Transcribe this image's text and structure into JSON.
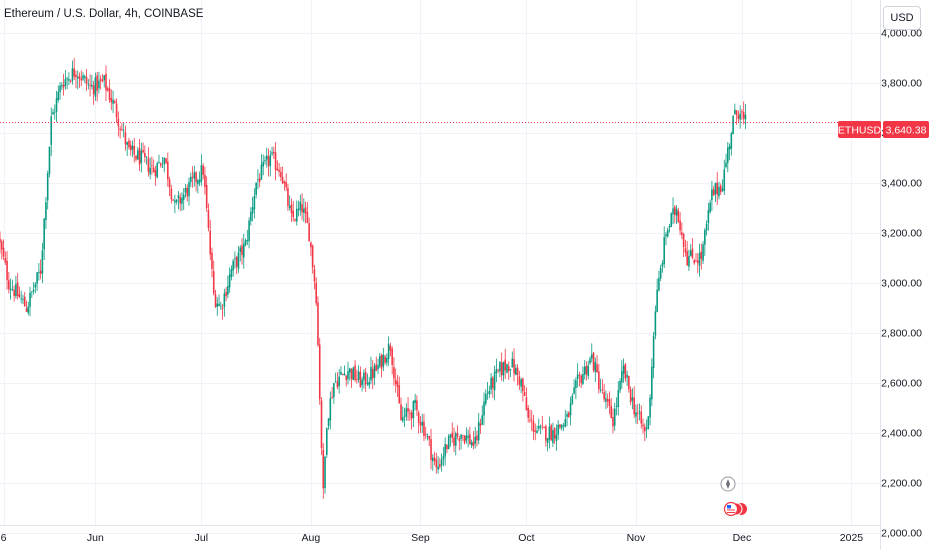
{
  "header": {
    "symbol_title": "Ethereum / U.S. Dollar, 4h, COINBASE",
    "currency_button": "USD"
  },
  "price_label": {
    "symbol": "ETHUSD",
    "price": "3,640.38",
    "color": "#f23645"
  },
  "colors": {
    "up": "#089981",
    "down": "#f23645",
    "grid": "#f0f3fa",
    "axis_text": "#131722"
  },
  "icons": [
    "compass-icon",
    "us-flag-event-icon"
  ],
  "chart_data": {
    "type": "candlestick",
    "title": "Ethereum / U.S. Dollar, 4h, COINBASE",
    "xlabel": "",
    "ylabel": "",
    "grid": true,
    "current_price": 3640.38,
    "ylim": [
      1930,
      4130
    ],
    "y_ticks": [
      "4,000.00",
      "3,800.00",
      "3,600.00",
      "3,400.00",
      "3,200.00",
      "3,000.00",
      "2,800.00",
      "2,600.00",
      "2,400.00",
      "2,200.00",
      "2,000.00"
    ],
    "y_tick_values": [
      4000,
      3800,
      3600,
      3400,
      3200,
      3000,
      2800,
      2600,
      2400,
      2200,
      2000
    ],
    "x_ticks": [
      "6",
      "Jun",
      "Jul",
      "Aug",
      "Sep",
      "Oct",
      "Nov",
      "Dec",
      "2025"
    ],
    "x_tick_dates": [
      "2024-05-06",
      "2024-06-01",
      "2024-07-01",
      "2024-08-01",
      "2024-09-01",
      "2024-10-01",
      "2024-11-01",
      "2024-12-01",
      "2025-01-01"
    ],
    "date_range": [
      "2024-05-05",
      "2024-12-02"
    ],
    "close_path": [
      [
        "2024-05-05",
        3180
      ],
      [
        "2024-05-08",
        3000
      ],
      [
        "2024-05-13",
        2900
      ],
      [
        "2024-05-17",
        3050
      ],
      [
        "2024-05-20",
        3650
      ],
      [
        "2024-05-23",
        3800
      ],
      [
        "2024-05-27",
        3850
      ],
      [
        "2024-05-31",
        3780
      ],
      [
        "2024-06-04",
        3800
      ],
      [
        "2024-06-07",
        3700
      ],
      [
        "2024-06-11",
        3520
      ],
      [
        "2024-06-14",
        3500
      ],
      [
        "2024-06-18",
        3450
      ],
      [
        "2024-06-21",
        3500
      ],
      [
        "2024-06-24",
        3300
      ],
      [
        "2024-06-29",
        3400
      ],
      [
        "2024-07-02",
        3450
      ],
      [
        "2024-07-05",
        2950
      ],
      [
        "2024-07-07",
        2900
      ],
      [
        "2024-07-10",
        3050
      ],
      [
        "2024-07-14",
        3150
      ],
      [
        "2024-07-17",
        3400
      ],
      [
        "2024-07-21",
        3500
      ],
      [
        "2024-07-24",
        3450
      ],
      [
        "2024-07-27",
        3250
      ],
      [
        "2024-07-30",
        3300
      ],
      [
        "2024-08-01",
        3200
      ],
      [
        "2024-08-03",
        2950
      ],
      [
        "2024-08-05",
        2150
      ],
      [
        "2024-08-06",
        2450
      ],
      [
        "2024-08-08",
        2600
      ],
      [
        "2024-08-12",
        2650
      ],
      [
        "2024-08-16",
        2600
      ],
      [
        "2024-08-20",
        2650
      ],
      [
        "2024-08-24",
        2750
      ],
      [
        "2024-08-27",
        2450
      ],
      [
        "2024-08-31",
        2500
      ],
      [
        "2024-09-03",
        2400
      ],
      [
        "2024-09-06",
        2250
      ],
      [
        "2024-09-09",
        2350
      ],
      [
        "2024-09-13",
        2400
      ],
      [
        "2024-09-17",
        2350
      ],
      [
        "2024-09-20",
        2550
      ],
      [
        "2024-09-24",
        2650
      ],
      [
        "2024-09-27",
        2680
      ],
      [
        "2024-09-30",
        2600
      ],
      [
        "2024-10-02",
        2450
      ],
      [
        "2024-10-05",
        2400
      ],
      [
        "2024-10-09",
        2400
      ],
      [
        "2024-10-13",
        2450
      ],
      [
        "2024-10-16",
        2600
      ],
      [
        "2024-10-20",
        2700
      ],
      [
        "2024-10-23",
        2550
      ],
      [
        "2024-10-26",
        2450
      ],
      [
        "2024-10-29",
        2650
      ],
      [
        "2024-11-01",
        2500
      ],
      [
        "2024-11-04",
        2400
      ],
      [
        "2024-11-05",
        2450
      ],
      [
        "2024-11-07",
        2900
      ],
      [
        "2024-11-10",
        3200
      ],
      [
        "2024-11-13",
        3300
      ],
      [
        "2024-11-16",
        3100
      ],
      [
        "2024-11-20",
        3100
      ],
      [
        "2024-11-23",
        3350
      ],
      [
        "2024-11-26",
        3400
      ],
      [
        "2024-11-29",
        3650
      ],
      [
        "2024-12-01",
        3700
      ],
      [
        "2024-12-02",
        3640
      ]
    ]
  }
}
